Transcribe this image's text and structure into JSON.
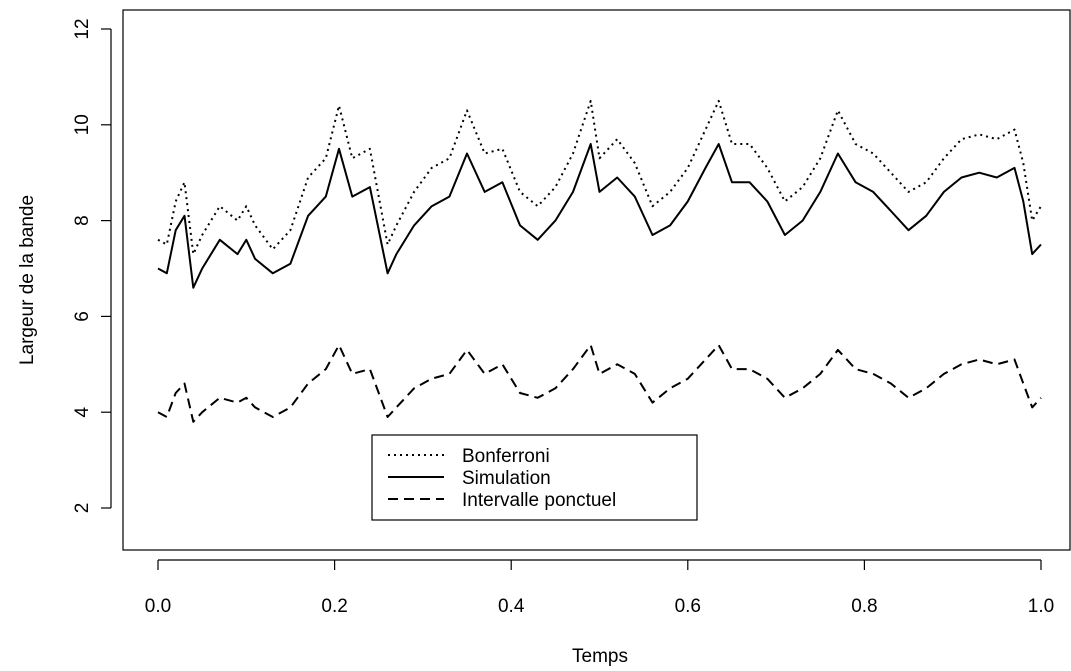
{
  "chart_data": {
    "type": "line",
    "xlabel": "Temps",
    "ylabel": "Largeur de la bande",
    "xlim": [
      0.0,
      1.0
    ],
    "ylim": [
      1.0,
      12.3
    ],
    "x_ticks": [
      "0.0",
      "0.2",
      "0.4",
      "0.6",
      "0.8",
      "1.0"
    ],
    "y_ticks": [
      "2",
      "4",
      "6",
      "8",
      "10",
      "12"
    ],
    "grid": false,
    "legend_position": "bottom-center",
    "series": [
      {
        "name": "Bonferroni",
        "dash": "dotted",
        "x": [
          0.0,
          0.01,
          0.02,
          0.03,
          0.04,
          0.05,
          0.07,
          0.09,
          0.1,
          0.11,
          0.13,
          0.15,
          0.17,
          0.19,
          0.205,
          0.22,
          0.24,
          0.26,
          0.27,
          0.29,
          0.31,
          0.33,
          0.35,
          0.37,
          0.39,
          0.41,
          0.43,
          0.45,
          0.47,
          0.49,
          0.5,
          0.52,
          0.54,
          0.56,
          0.58,
          0.6,
          0.62,
          0.635,
          0.65,
          0.67,
          0.69,
          0.71,
          0.73,
          0.75,
          0.77,
          0.79,
          0.81,
          0.83,
          0.85,
          0.87,
          0.89,
          0.91,
          0.93,
          0.95,
          0.97,
          0.98,
          0.99,
          1.0
        ],
        "y": [
          7.6,
          7.5,
          8.4,
          8.8,
          7.3,
          7.7,
          8.3,
          8.0,
          8.3,
          7.9,
          7.4,
          7.8,
          8.9,
          9.3,
          10.4,
          9.3,
          9.5,
          7.5,
          7.9,
          8.6,
          9.1,
          9.3,
          10.3,
          9.4,
          9.5,
          8.6,
          8.3,
          8.7,
          9.4,
          10.5,
          9.3,
          9.7,
          9.2,
          8.3,
          8.6,
          9.1,
          9.9,
          10.5,
          9.6,
          9.6,
          9.1,
          8.4,
          8.7,
          9.3,
          10.3,
          9.6,
          9.4,
          9.0,
          8.6,
          8.8,
          9.3,
          9.7,
          9.8,
          9.7,
          9.9,
          9.2,
          8.0,
          8.3
        ]
      },
      {
        "name": "Simulation",
        "dash": "solid",
        "x": [
          0.0,
          0.01,
          0.02,
          0.03,
          0.04,
          0.05,
          0.07,
          0.09,
          0.1,
          0.11,
          0.13,
          0.15,
          0.17,
          0.19,
          0.205,
          0.22,
          0.24,
          0.26,
          0.27,
          0.29,
          0.31,
          0.33,
          0.35,
          0.37,
          0.39,
          0.41,
          0.43,
          0.45,
          0.47,
          0.49,
          0.5,
          0.52,
          0.54,
          0.56,
          0.58,
          0.6,
          0.62,
          0.635,
          0.65,
          0.67,
          0.69,
          0.71,
          0.73,
          0.75,
          0.77,
          0.79,
          0.81,
          0.83,
          0.85,
          0.87,
          0.89,
          0.91,
          0.93,
          0.95,
          0.97,
          0.98,
          0.99,
          1.0
        ],
        "y": [
          7.0,
          6.9,
          7.8,
          8.1,
          6.6,
          7.0,
          7.6,
          7.3,
          7.6,
          7.2,
          6.9,
          7.1,
          8.1,
          8.5,
          9.5,
          8.5,
          8.7,
          6.9,
          7.3,
          7.9,
          8.3,
          8.5,
          9.4,
          8.6,
          8.8,
          7.9,
          7.6,
          8.0,
          8.6,
          9.6,
          8.6,
          8.9,
          8.5,
          7.7,
          7.9,
          8.4,
          9.1,
          9.6,
          8.8,
          8.8,
          8.4,
          7.7,
          8.0,
          8.6,
          9.4,
          8.8,
          8.6,
          8.2,
          7.8,
          8.1,
          8.6,
          8.9,
          9.0,
          8.9,
          9.1,
          8.4,
          7.3,
          7.5
        ]
      },
      {
        "name": "Intervalle ponctuel",
        "dash": "dashed",
        "x": [
          0.0,
          0.01,
          0.02,
          0.03,
          0.04,
          0.05,
          0.07,
          0.09,
          0.1,
          0.11,
          0.13,
          0.15,
          0.17,
          0.19,
          0.205,
          0.22,
          0.24,
          0.26,
          0.27,
          0.29,
          0.31,
          0.33,
          0.35,
          0.37,
          0.39,
          0.41,
          0.43,
          0.45,
          0.47,
          0.49,
          0.5,
          0.52,
          0.54,
          0.56,
          0.58,
          0.6,
          0.62,
          0.635,
          0.65,
          0.67,
          0.69,
          0.71,
          0.73,
          0.75,
          0.77,
          0.79,
          0.81,
          0.83,
          0.85,
          0.87,
          0.89,
          0.91,
          0.93,
          0.95,
          0.97,
          0.98,
          0.99,
          1.0
        ],
        "y": [
          4.0,
          3.9,
          4.4,
          4.6,
          3.8,
          4.0,
          4.3,
          4.2,
          4.3,
          4.1,
          3.9,
          4.1,
          4.6,
          4.9,
          5.4,
          4.8,
          4.9,
          3.9,
          4.1,
          4.5,
          4.7,
          4.8,
          5.3,
          4.8,
          5.0,
          4.4,
          4.3,
          4.5,
          4.9,
          5.4,
          4.8,
          5.0,
          4.8,
          4.2,
          4.5,
          4.7,
          5.1,
          5.4,
          4.9,
          4.9,
          4.7,
          4.3,
          4.5,
          4.8,
          5.3,
          4.9,
          4.8,
          4.6,
          4.3,
          4.5,
          4.8,
          5.0,
          5.1,
          5.0,
          5.1,
          4.6,
          4.1,
          4.3
        ]
      }
    ]
  }
}
